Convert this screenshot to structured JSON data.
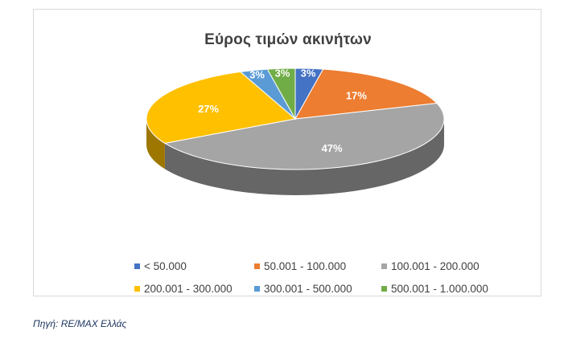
{
  "chart_data": {
    "type": "pie",
    "title": "Εύρος τιμών ακινήτων",
    "categories": [
      "< 50.000",
      "50.001 - 100.000",
      "100.001 - 200.000",
      "200.001 - 300.000",
      "300.001 - 500.000",
      "500.001 - 1.000.000"
    ],
    "values": [
      3,
      17,
      47,
      27,
      3,
      3
    ],
    "labels": [
      "3%",
      "17%",
      "47%",
      "27%",
      "3%",
      "3%"
    ],
    "colors": [
      "#4472c4",
      "#ed7d31",
      "#a5a5a5",
      "#ffc000",
      "#5b9bd5",
      "#70ad47"
    ],
    "three_d": true,
    "legend_position": "bottom"
  },
  "source": "Πηγή: RE/MAX Ελλάς"
}
